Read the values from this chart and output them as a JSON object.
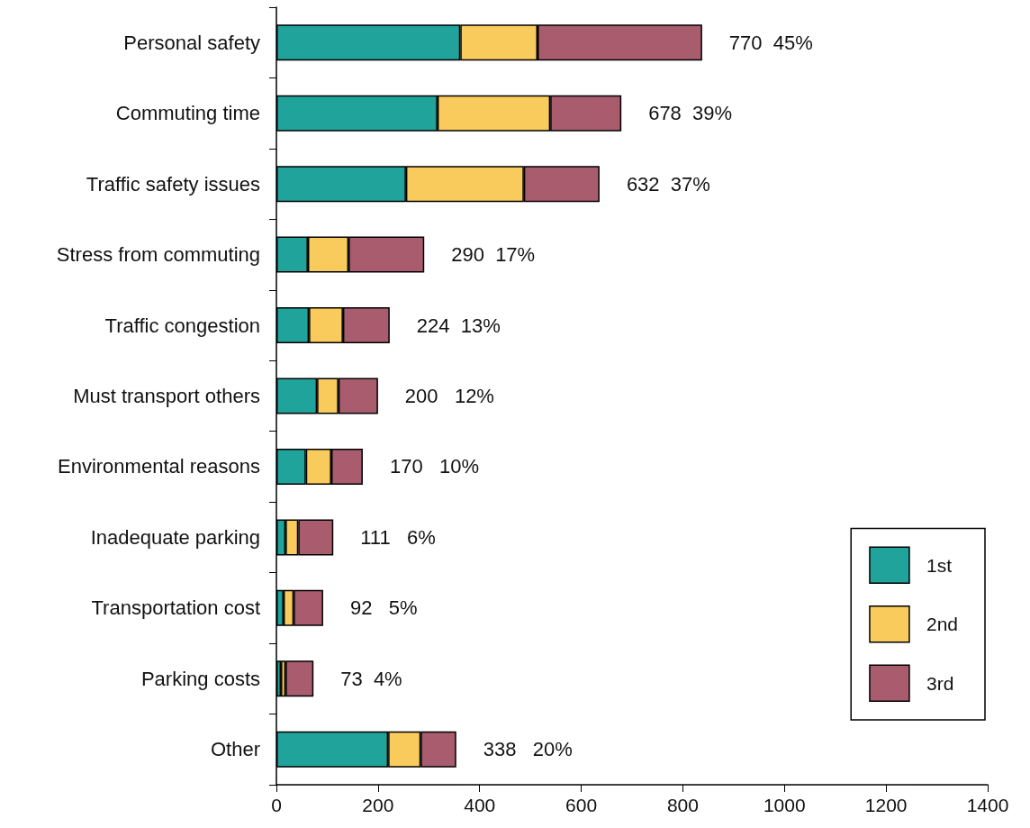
{
  "chart_data": {
    "type": "bar",
    "orientation": "horizontal",
    "stacked": true,
    "categories": [
      "Personal safety",
      "Commuting time",
      "Traffic safety issues",
      "Stress from commuting",
      "Traffic congestion",
      "Must transport others",
      "Environmental reasons",
      "Inadequate parking",
      "Transportation cost",
      "Parking costs",
      "Other"
    ],
    "series": [
      {
        "name": "1st",
        "color": "#1fa39a",
        "values": [
          362,
          317,
          255,
          62,
          64,
          80,
          58,
          18,
          14,
          9,
          220
        ]
      },
      {
        "name": "2nd",
        "color": "#f9cb5c",
        "values": [
          152,
          222,
          232,
          80,
          67,
          42,
          50,
          25,
          20,
          9,
          64
        ]
      },
      {
        "name": "3rd",
        "color": "#a85c6e",
        "values": [
          324,
          140,
          149,
          149,
          92,
          78,
          62,
          69,
          58,
          55,
          70
        ]
      }
    ],
    "totals": [
      "770  45%",
      "678  39%",
      "632  37%",
      "290  17%",
      "224  13%",
      "200   12%",
      "170   10%",
      "111   6%",
      "92   5%",
      "73  4%",
      "338   20%"
    ],
    "xlim": [
      0,
      1400
    ],
    "xticks": [
      0,
      200,
      400,
      600,
      800,
      1000,
      1200,
      1400
    ],
    "grid": false,
    "legend": "bottom right"
  }
}
